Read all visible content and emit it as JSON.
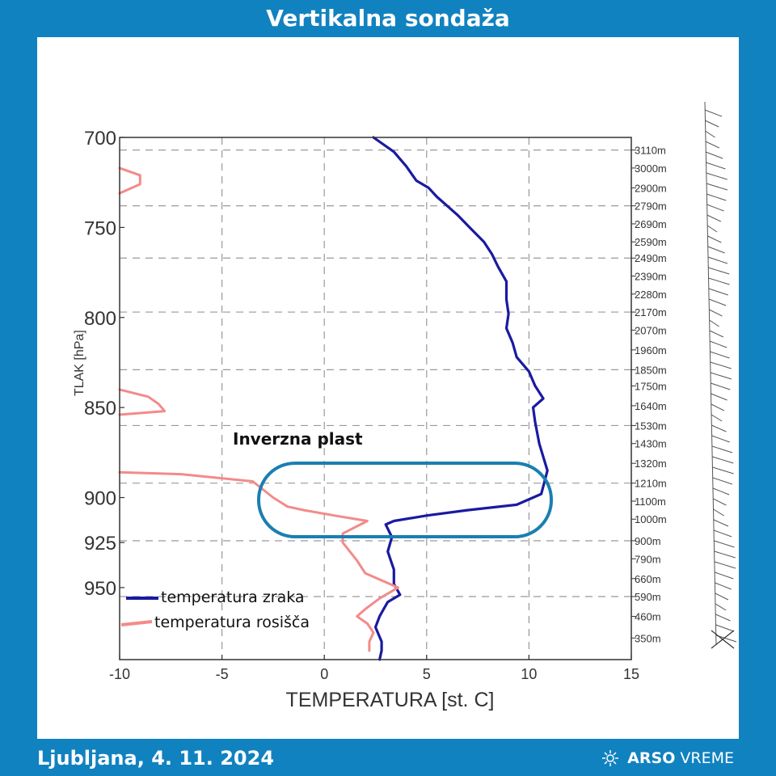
{
  "header": {
    "title": "Vertikalna sondaža"
  },
  "footer": {
    "location_date": "Ljubljana, 4. 11. 2024",
    "brand_bold": "ARSO",
    "brand_light": "VREME"
  },
  "chart_data": {
    "type": "line",
    "xlabel": "TEMPERATURA [st. C]",
    "ylabel": "TLAK [hPa]",
    "xlim": [
      -10,
      15
    ],
    "ylim": [
      700,
      990
    ],
    "x_ticks": [
      -10,
      -5,
      0,
      5,
      10,
      15
    ],
    "y_ticks": [
      700,
      750,
      800,
      850,
      900,
      925,
      950
    ],
    "height_labels": [
      {
        "label": "3110m",
        "p": 707
      },
      {
        "label": "3000m",
        "p": 717
      },
      {
        "label": "2900m",
        "p": 728
      },
      {
        "label": "2790m",
        "p": 738
      },
      {
        "label": "2690m",
        "p": 748
      },
      {
        "label": "2590m",
        "p": 758
      },
      {
        "label": "2490m",
        "p": 767
      },
      {
        "label": "2390m",
        "p": 777
      },
      {
        "label": "2280m",
        "p": 787
      },
      {
        "label": "2170m",
        "p": 797
      },
      {
        "label": "2070m",
        "p": 807
      },
      {
        "label": "1960m",
        "p": 818
      },
      {
        "label": "1850m",
        "p": 829
      },
      {
        "label": "1750m",
        "p": 838
      },
      {
        "label": "1640m",
        "p": 849
      },
      {
        "label": "1530m",
        "p": 860
      },
      {
        "label": "1430m",
        "p": 870
      },
      {
        "label": "1320m",
        "p": 881
      },
      {
        "label": "1210m",
        "p": 892
      },
      {
        "label": "1100m",
        "p": 902
      },
      {
        "label": "1000m",
        "p": 912
      },
      {
        "label": "900m",
        "p": 924
      },
      {
        "label": "790m",
        "p": 934
      },
      {
        "label": "660m",
        "p": 945
      },
      {
        "label": "590m",
        "p": 955
      },
      {
        "label": "460m",
        "p": 966
      },
      {
        "label": "350m",
        "p": 978
      }
    ],
    "dashed_grid_pressures": [
      707,
      738,
      767,
      797,
      829,
      860,
      892,
      924,
      955
    ],
    "series": [
      {
        "name": "temperatura zraka",
        "color": "#1a1aa0",
        "points": [
          [
            2.4,
            700
          ],
          [
            3.4,
            708
          ],
          [
            4.0,
            716
          ],
          [
            4.5,
            724
          ],
          [
            5.1,
            728
          ],
          [
            5.5,
            733
          ],
          [
            6.0,
            738
          ],
          [
            6.5,
            743
          ],
          [
            7.1,
            750
          ],
          [
            7.8,
            758
          ],
          [
            8.2,
            765
          ],
          [
            8.5,
            772
          ],
          [
            8.9,
            780
          ],
          [
            8.9,
            790
          ],
          [
            9.0,
            798
          ],
          [
            8.9,
            806
          ],
          [
            9.2,
            814
          ],
          [
            9.4,
            822
          ],
          [
            10.0,
            830
          ],
          [
            10.3,
            838
          ],
          [
            10.7,
            845
          ],
          [
            10.2,
            850
          ],
          [
            10.3,
            858
          ],
          [
            10.5,
            870
          ],
          [
            10.9,
            885
          ],
          [
            10.6,
            898
          ],
          [
            9.4,
            904
          ],
          [
            7.0,
            907
          ],
          [
            5.0,
            910
          ],
          [
            3.4,
            913
          ],
          [
            3.0,
            915
          ],
          [
            3.3,
            922
          ],
          [
            3.1,
            930
          ],
          [
            3.4,
            940
          ],
          [
            3.4,
            948
          ],
          [
            3.7,
            954
          ],
          [
            3.1,
            958
          ],
          [
            2.9,
            962
          ],
          [
            2.7,
            966
          ],
          [
            2.5,
            972
          ],
          [
            2.8,
            980
          ],
          [
            2.8,
            985
          ],
          [
            2.7,
            990
          ]
        ]
      },
      {
        "name": "temperatura rosišča",
        "color": "#f48a8a",
        "points": [
          [
            -10,
            717
          ],
          [
            -9.0,
            721
          ],
          [
            -9.0,
            726
          ],
          [
            -10,
            731
          ],
          null,
          [
            -10,
            840
          ],
          [
            -8.6,
            844
          ],
          [
            -8.1,
            848
          ],
          [
            -7.8,
            852
          ],
          [
            -10,
            854
          ],
          null,
          [
            -10,
            886
          ],
          [
            -7.0,
            887
          ],
          [
            -3.5,
            891
          ],
          [
            -2.5,
            900
          ],
          [
            -1.8,
            905
          ],
          [
            -1.0,
            907
          ],
          [
            0.5,
            910
          ],
          [
            2.1,
            913
          ],
          [
            0.9,
            920
          ],
          [
            0.9,
            925
          ],
          [
            1.6,
            935
          ],
          [
            2.0,
            942
          ],
          [
            3.6,
            950
          ],
          [
            2.7,
            956
          ],
          [
            2.0,
            962
          ],
          [
            1.6,
            966
          ],
          [
            2.1,
            970
          ],
          [
            2.4,
            975
          ],
          [
            2.2,
            980
          ],
          [
            2.2,
            985
          ]
        ]
      }
    ],
    "legend": [
      "temperatura zraka",
      "temperatura rosišča"
    ],
    "annotation": "Inverzna plast"
  }
}
